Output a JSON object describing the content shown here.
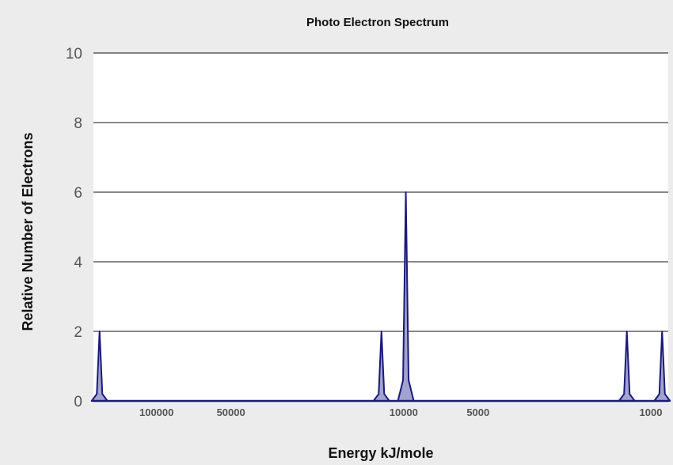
{
  "chart_data": {
    "type": "area",
    "title": "Photo Electron Spectrum",
    "xlabel": "Energy kJ/mole",
    "ylabel": "Relative Number of Electrons",
    "x_scale": "log",
    "x_reversed": true,
    "xlim": [
      180000,
      850
    ],
    "ylim": [
      0,
      10
    ],
    "yticks": [
      0,
      2,
      4,
      6,
      8,
      10
    ],
    "xticks": [
      100000,
      50000,
      10000,
      5000,
      1000
    ],
    "grid": "horizontal",
    "legend": "none",
    "series": [
      {
        "color": "#1a1a7a",
        "fill": "#a3a3cf",
        "peaks": [
          {
            "x": 170000,
            "y": 2
          },
          {
            "x": 12300,
            "y": 2
          },
          {
            "x": 9800,
            "y": 6
          },
          {
            "x": 1250,
            "y": 2
          },
          {
            "x": 900,
            "y": 2
          }
        ]
      }
    ]
  }
}
